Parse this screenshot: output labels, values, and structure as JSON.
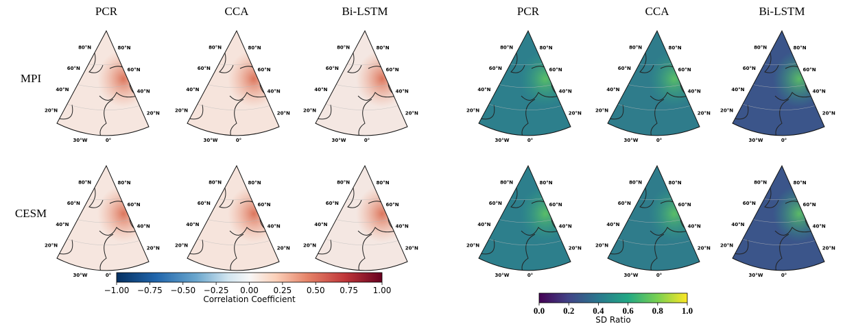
{
  "left_panel": {
    "columns": [
      "PCR",
      "CCA",
      "Bi-LSTM"
    ]
  },
  "right_panel": {
    "columns": [
      "PCR",
      "CCA",
      "Bi-LSTM"
    ]
  },
  "rows": [
    "MPI",
    "CESM"
  ],
  "map_labels": {
    "lat": [
      "80°N",
      "60°N",
      "40°N",
      "20°N"
    ],
    "lon": [
      "30°W",
      "0°"
    ]
  },
  "colorbars": [
    {
      "label": "Correlation Coefficient",
      "lim": [
        -1,
        1
      ],
      "ticks": [
        {
          "value": -1,
          "label": "−1.00"
        },
        {
          "value": -0.75,
          "label": "−0.75"
        },
        {
          "value": -0.5,
          "label": "−0.50"
        },
        {
          "value": -0.25,
          "label": "−0.25"
        },
        {
          "value": 0,
          "label": "0.00"
        },
        0.25,
        {
          "value": 0.5,
          "label": "0.50"
        },
        0.75,
        {
          "value": 1,
          "label": "1.00"
        }
      ]
    },
    {
      "label": "SD Ratio",
      "lim": [
        0,
        1
      ],
      "ticks": [
        {
          "value": 0,
          "label": "0.0"
        },
        0.2,
        0.4,
        0.6,
        0.8,
        {
          "value": 1,
          "label": "1.0"
        }
      ]
    }
  ]
}
